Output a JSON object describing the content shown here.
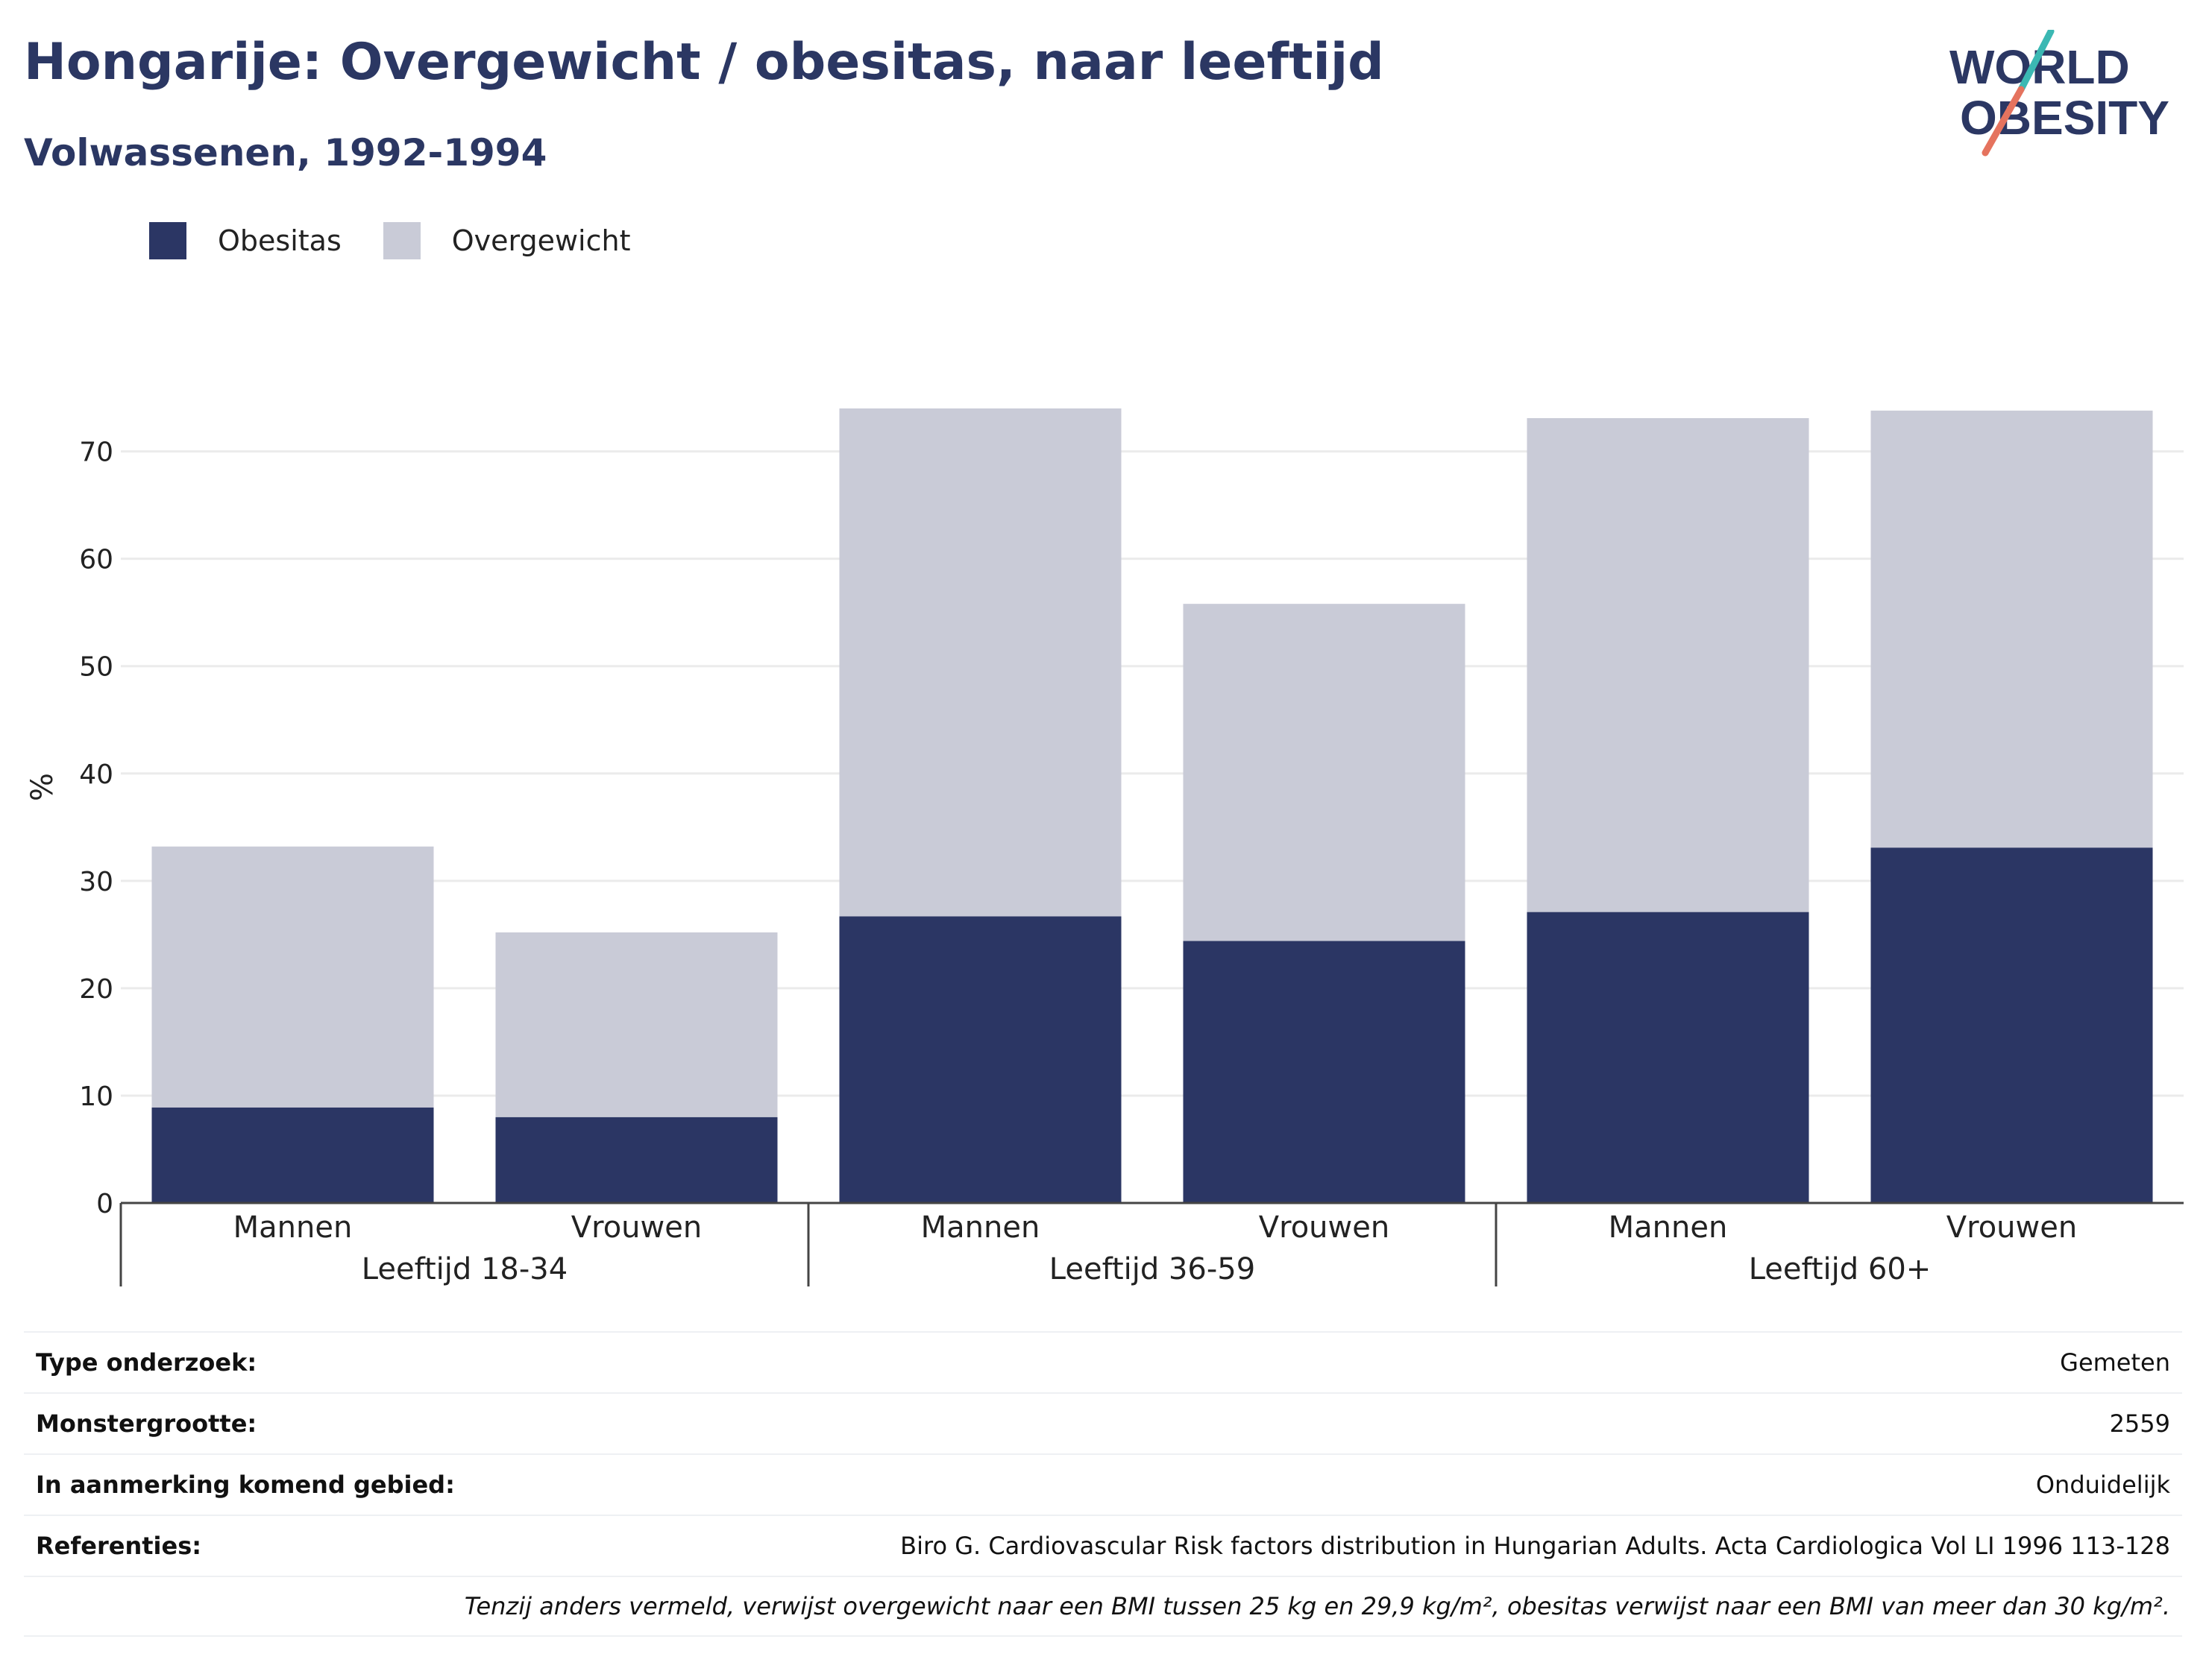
{
  "header": {
    "title": "Hongarije: Overgewicht / obesitas, naar leeftijd",
    "subtitle": "Volwassenen, 1992-1994"
  },
  "logo": {
    "line1": "WORLD",
    "line2": "OBESITY"
  },
  "colors": {
    "obesitas": "#2b3664",
    "overgewicht": "#c9cbd7",
    "text": "#2b3763",
    "accent_teal": "#3bb8b3",
    "accent_coral": "#e5735e"
  },
  "chart_data": {
    "type": "bar",
    "stacked": true,
    "ylabel": "%",
    "ylim": [
      0,
      74
    ],
    "yticks": [
      0,
      10,
      20,
      30,
      40,
      50,
      60,
      70
    ],
    "grid": true,
    "legend_position": "top-left",
    "groups": [
      {
        "label": "Leeftijd 18-34",
        "categories": [
          "Mannen",
          "Vrouwen"
        ]
      },
      {
        "label": "Leeftijd 36-59",
        "categories": [
          "Mannen",
          "Vrouwen"
        ]
      },
      {
        "label": "Leeftijd 60+",
        "categories": [
          "Mannen",
          "Vrouwen"
        ]
      }
    ],
    "categories": [
      "Mannen",
      "Vrouwen",
      "Mannen",
      "Vrouwen",
      "Mannen",
      "Vrouwen"
    ],
    "series": [
      {
        "name": "Obesitas",
        "values": [
          8.9,
          8.0,
          26.7,
          24.4,
          27.1,
          33.1
        ]
      },
      {
        "name": "Overgewicht",
        "values": [
          24.3,
          17.2,
          47.3,
          31.4,
          46.0,
          40.7
        ]
      }
    ]
  },
  "info": [
    {
      "key": "Type onderzoek:",
      "value": "Gemeten"
    },
    {
      "key": "Monstergrootte:",
      "value": "2559"
    },
    {
      "key": "In aanmerking komend gebied:",
      "value": "Onduidelijk"
    },
    {
      "key": "Referenties:",
      "value": "Biro G. Cardiovascular Risk factors distribution in Hungarian Adults. Acta Cardiologica Vol LI 1996 113-128"
    }
  ],
  "footnote": "Tenzij anders vermeld, verwijst overgewicht naar een BMI tussen 25 kg en 29,9 kg/m², obesitas verwijst naar een BMI van meer dan 30 kg/m²."
}
